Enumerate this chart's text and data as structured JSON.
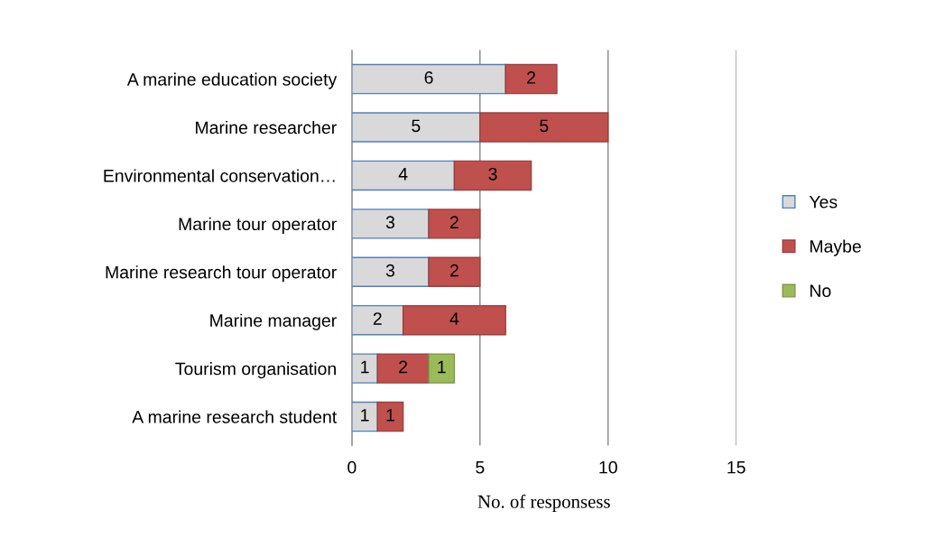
{
  "chart_data": {
    "type": "bar",
    "orientation": "horizontal",
    "stacked": true,
    "xlabel": "No. of responsess",
    "categories": [
      "A marine education society",
      "Marine researcher",
      "Environmental conservation…",
      "Marine tour operator",
      "Marine research tour operator",
      "Marine manager",
      "Tourism organisation",
      "A marine research student"
    ],
    "series": [
      {
        "name": "Yes",
        "color": "#d9d9d9",
        "values": [
          6,
          5,
          4,
          3,
          3,
          2,
          1,
          1
        ]
      },
      {
        "name": "Maybe",
        "color": "#c0504d",
        "values": [
          2,
          5,
          3,
          2,
          2,
          4,
          2,
          1
        ]
      },
      {
        "name": "No",
        "color": "#9bbb59",
        "values": [
          null,
          null,
          null,
          null,
          null,
          null,
          1,
          null
        ]
      }
    ],
    "xlim": [
      0,
      15
    ],
    "xticks": [
      0,
      5,
      10,
      15
    ],
    "grid": "x",
    "legend": "right",
    "data_labels": true
  }
}
